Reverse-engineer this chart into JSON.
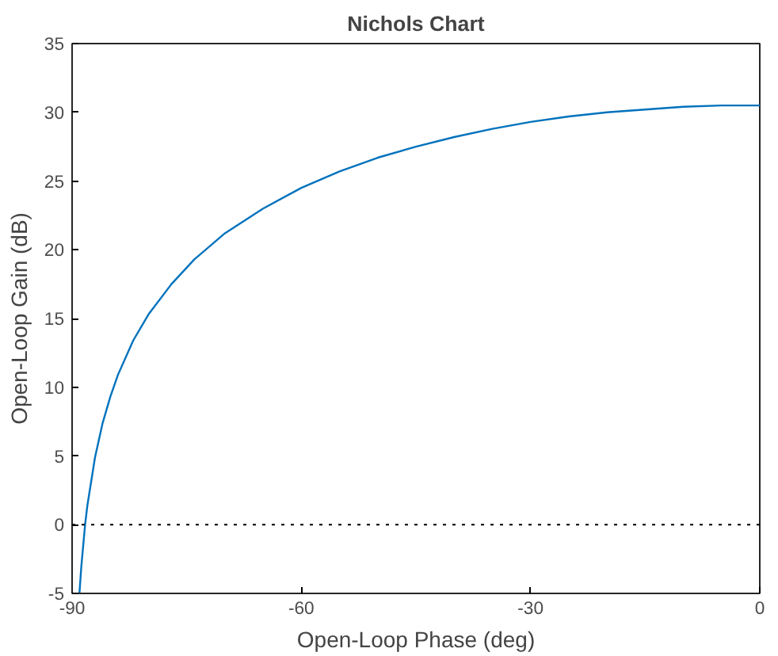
{
  "chart_data": {
    "type": "line",
    "title": "Nichols Chart",
    "xlabel": "Open-Loop Phase (deg)",
    "ylabel": "Open-Loop Gain (dB)",
    "xlim": [
      -90,
      0
    ],
    "xticks": [
      -90,
      -60,
      -30,
      0
    ],
    "ylim": [
      -5,
      35
    ],
    "yticks": [
      -5,
      0,
      5,
      10,
      15,
      20,
      25,
      30,
      35
    ],
    "grid": false,
    "marker": "none",
    "line_style": "solid",
    "ref_lines": [
      {
        "axis": "y",
        "value": 0,
        "color": "#000000",
        "line_style": "dotted"
      }
    ],
    "series": [
      {
        "color": "#0072bd",
        "x": [
          -89.04,
          -88.8,
          -88.3,
          -88,
          -87,
          -86,
          -85,
          -84,
          -82,
          -80,
          -77,
          -74,
          -70,
          -65,
          -60,
          -55,
          -50,
          -45,
          -40,
          -35,
          -30,
          -25,
          -20,
          -15,
          -10,
          -5,
          0
        ],
        "values": [
          -5,
          -3.1,
          0,
          1.4,
          4.9,
          7.4,
          9.3,
          10.9,
          13.4,
          15.3,
          17.5,
          19.3,
          21.2,
          23,
          24.5,
          25.7,
          26.7,
          27.5,
          28.2,
          28.8,
          29.3,
          29.7,
          30,
          30.2,
          30.4,
          30.5,
          30.5
        ]
      }
    ]
  }
}
